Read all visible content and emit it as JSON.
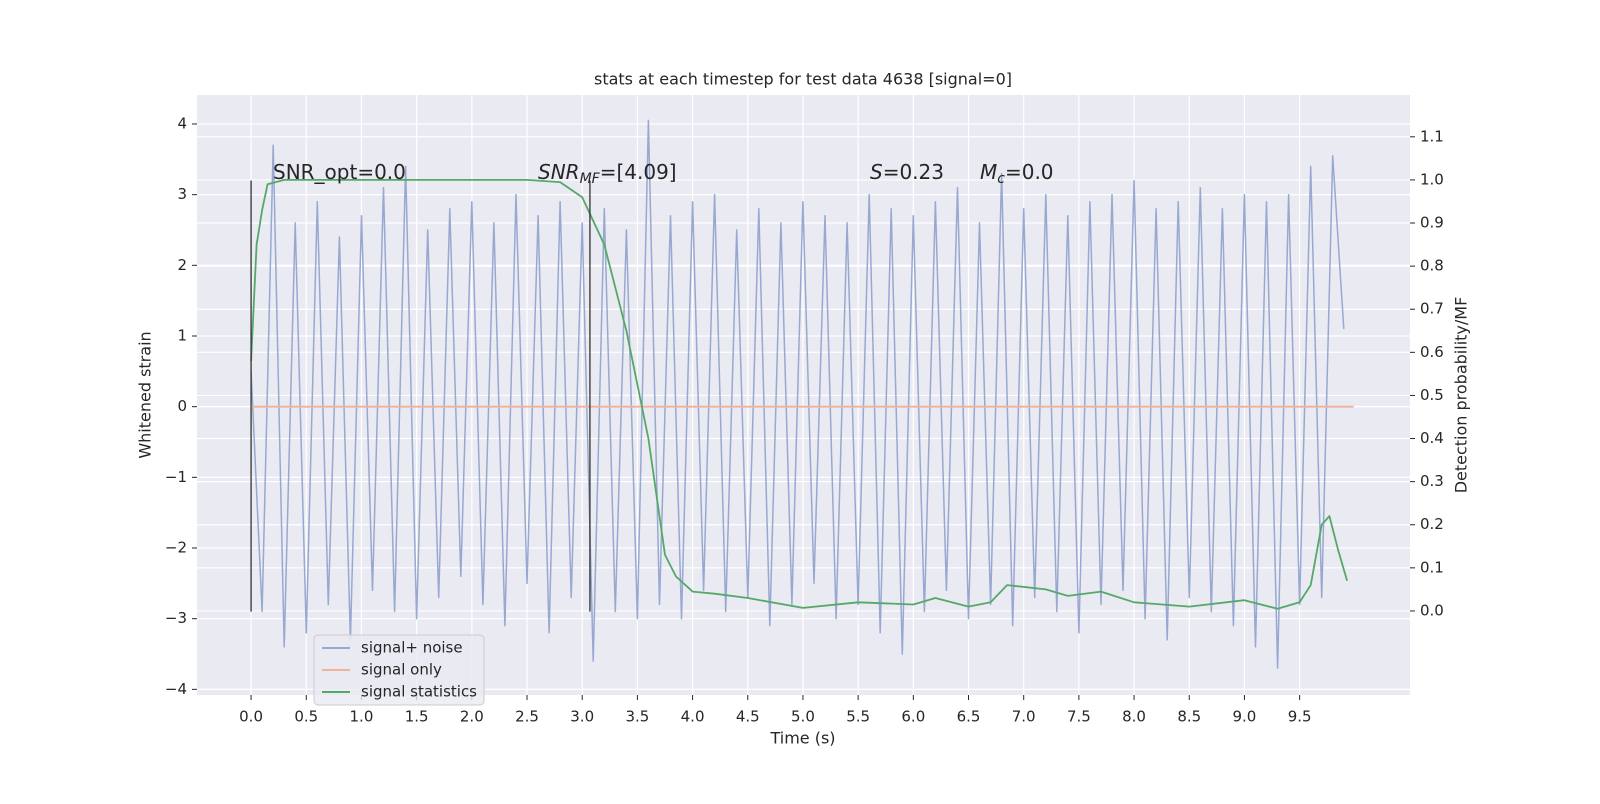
{
  "chart_data": {
    "type": "line",
    "title": "stats at each timestep for test data 4638 [signal=0]",
    "xlabel": "Time (s)",
    "ylabel": "Whitened strain",
    "y2label": "Detection probability/MF",
    "xlim": [
      -0.49,
      10.5
    ],
    "ylim": [
      -4.08,
      4.41
    ],
    "y2lim": [
      -0.195,
      1.197
    ],
    "xticks": [
      {
        "value": 0,
        "label": "0.0"
      },
      {
        "value": 0.5,
        "label": "0.5"
      },
      {
        "value": 1,
        "label": "1.0"
      },
      {
        "value": 1.5,
        "label": "1.5"
      },
      {
        "value": 2,
        "label": "2.0"
      },
      {
        "value": 2.5,
        "label": "2.5"
      },
      {
        "value": 3,
        "label": "3.0"
      },
      {
        "value": 3.5,
        "label": "3.5"
      },
      {
        "value": 4,
        "label": "4.0"
      },
      {
        "value": 4.5,
        "label": "4.5"
      },
      {
        "value": 5,
        "label": "5.0"
      },
      {
        "value": 5.5,
        "label": "5.5"
      },
      {
        "value": 6,
        "label": "6.0"
      },
      {
        "value": 6.5,
        "label": "6.5"
      },
      {
        "value": 7,
        "label": "7.0"
      },
      {
        "value": 7.5,
        "label": "7.5"
      },
      {
        "value": 8,
        "label": "8.0"
      },
      {
        "value": 8.5,
        "label": "8.5"
      },
      {
        "value": 9,
        "label": "9.0"
      },
      {
        "value": 9.5,
        "label": "9.5"
      }
    ],
    "yticks": [
      {
        "value": -4,
        "label": "−4"
      },
      {
        "value": -3,
        "label": "−3"
      },
      {
        "value": -2,
        "label": "−2"
      },
      {
        "value": -1,
        "label": "−1"
      },
      0,
      1,
      2,
      3,
      4
    ],
    "y2ticks": [
      {
        "value": 0,
        "label": "0.0"
      },
      {
        "value": 0.1,
        "label": "0.1"
      },
      {
        "value": 0.2,
        "label": "0.2"
      },
      {
        "value": 0.3,
        "label": "0.3"
      },
      {
        "value": 0.4,
        "label": "0.4"
      },
      {
        "value": 0.5,
        "label": "0.5"
      },
      {
        "value": 0.6,
        "label": "0.6"
      },
      {
        "value": 0.7,
        "label": "0.7"
      },
      {
        "value": 0.8,
        "label": "0.8"
      },
      {
        "value": 0.9,
        "label": "0.9"
      },
      {
        "value": 1,
        "label": "1.0"
      },
      {
        "value": 1.1,
        "label": "1.1"
      }
    ],
    "grid": true,
    "legend": "lower left",
    "series": [
      {
        "name": "signal+ noise",
        "color": "#97a9d0",
        "x": [
          0.0,
          0.1,
          0.2,
          0.3,
          0.4,
          0.5,
          0.6,
          0.7,
          0.8,
          0.9,
          1.0,
          1.1,
          1.2,
          1.3,
          1.4,
          1.5,
          1.6,
          1.7,
          1.8,
          1.9,
          2.0,
          2.1,
          2.2,
          2.3,
          2.4,
          2.5,
          2.6,
          2.7,
          2.8,
          2.9,
          3.0,
          3.1,
          3.2,
          3.3,
          3.4,
          3.5,
          3.6,
          3.7,
          3.8,
          3.9,
          4.0,
          4.1,
          4.2,
          4.3,
          4.4,
          4.5,
          4.6,
          4.7,
          4.8,
          4.9,
          5.0,
          5.1,
          5.2,
          5.3,
          5.4,
          5.5,
          5.6,
          5.7,
          5.8,
          5.9,
          6.0,
          6.1,
          6.2,
          6.3,
          6.4,
          6.5,
          6.6,
          6.7,
          6.8,
          6.9,
          7.0,
          7.1,
          7.2,
          7.3,
          7.4,
          7.5,
          7.6,
          7.7,
          7.8,
          7.9,
          8.0,
          8.1,
          8.2,
          8.3,
          8.4,
          8.5,
          8.6,
          8.7,
          8.8,
          8.9,
          9.0,
          9.1,
          9.2,
          9.3,
          9.4,
          9.5,
          9.6,
          9.7,
          9.8,
          9.9
        ],
        "values": [
          0.5,
          -2.9,
          3.7,
          -3.4,
          2.6,
          -3.2,
          2.9,
          -2.8,
          2.4,
          -3.3,
          2.7,
          -2.6,
          3.1,
          -2.9,
          3.4,
          -3.0,
          2.5,
          -2.7,
          2.8,
          -2.4,
          2.9,
          -2.8,
          2.6,
          -3.1,
          3.0,
          -2.5,
          2.7,
          -3.2,
          2.9,
          -2.7,
          2.6,
          -3.6,
          2.8,
          -2.9,
          2.5,
          -3.0,
          4.05,
          -2.8,
          2.7,
          -3.0,
          2.9,
          -2.6,
          3.0,
          -2.9,
          2.5,
          -2.7,
          2.8,
          -3.1,
          2.6,
          -2.8,
          2.9,
          -2.5,
          2.7,
          -3.0,
          2.6,
          -2.8,
          3.0,
          -3.2,
          2.8,
          -3.5,
          2.7,
          -2.9,
          2.9,
          -2.6,
          3.1,
          -3.0,
          2.6,
          -2.8,
          3.3,
          -3.1,
          2.8,
          -2.7,
          3.0,
          -2.9,
          2.7,
          -3.2,
          2.9,
          -2.8,
          3.0,
          -2.6,
          3.2,
          -3.0,
          2.8,
          -3.3,
          2.9,
          -2.7,
          3.1,
          -2.9,
          2.8,
          -3.1,
          3.0,
          -3.4,
          2.9,
          -3.7,
          3.0,
          -2.8,
          3.4,
          -2.7,
          3.55,
          1.1
        ]
      },
      {
        "name": "signal only",
        "color": "#eeb498",
        "x": [
          0,
          9.99
        ],
        "values": [
          0,
          0
        ]
      },
      {
        "name": "signal statistics",
        "color": "#55a868",
        "axis": "y2",
        "x": [
          0,
          0.05,
          0.1,
          0.15,
          0.3,
          2.5,
          2.8,
          3.0,
          3.2,
          3.4,
          3.6,
          3.75,
          3.85,
          4.0,
          4.2,
          4.5,
          5.0,
          5.5,
          6.0,
          6.2,
          6.5,
          6.7,
          6.85,
          7.2,
          7.4,
          7.7,
          8.0,
          8.5,
          9.0,
          9.3,
          9.5,
          9.6,
          9.7,
          9.77,
          9.85,
          9.93
        ],
        "values": [
          0.58,
          0.85,
          0.93,
          0.99,
          1.0,
          1.0,
          0.995,
          0.96,
          0.85,
          0.65,
          0.4,
          0.13,
          0.08,
          0.045,
          0.04,
          0.03,
          0.007,
          0.02,
          0.015,
          0.03,
          0.01,
          0.02,
          0.06,
          0.05,
          0.035,
          0.045,
          0.02,
          0.01,
          0.025,
          0.005,
          0.02,
          0.06,
          0.2,
          0.22,
          0.14,
          0.07
        ]
      }
    ],
    "vlines": [
      {
        "x": 0,
        "ymin": -2.9,
        "ymax": 3.2
      },
      {
        "x": 3.07,
        "ymin": -2.9,
        "ymax": 3.2
      }
    ],
    "annotations": [
      [
        {
          "text": "SNR_opt=0.0"
        }
      ],
      [
        {
          "text": "SNR",
          "style": "italic"
        },
        {
          "text": "MF",
          "style": "italic-sub"
        },
        {
          "text": "=[4.09]"
        }
      ],
      [
        {
          "text": "S",
          "style": "italic"
        },
        {
          "text": "=0.23"
        }
      ],
      [
        {
          "text": "M",
          "style": "italic"
        },
        {
          "text": "c",
          "style": "italic-sub"
        },
        {
          "text": "=0.0"
        }
      ]
    ]
  }
}
